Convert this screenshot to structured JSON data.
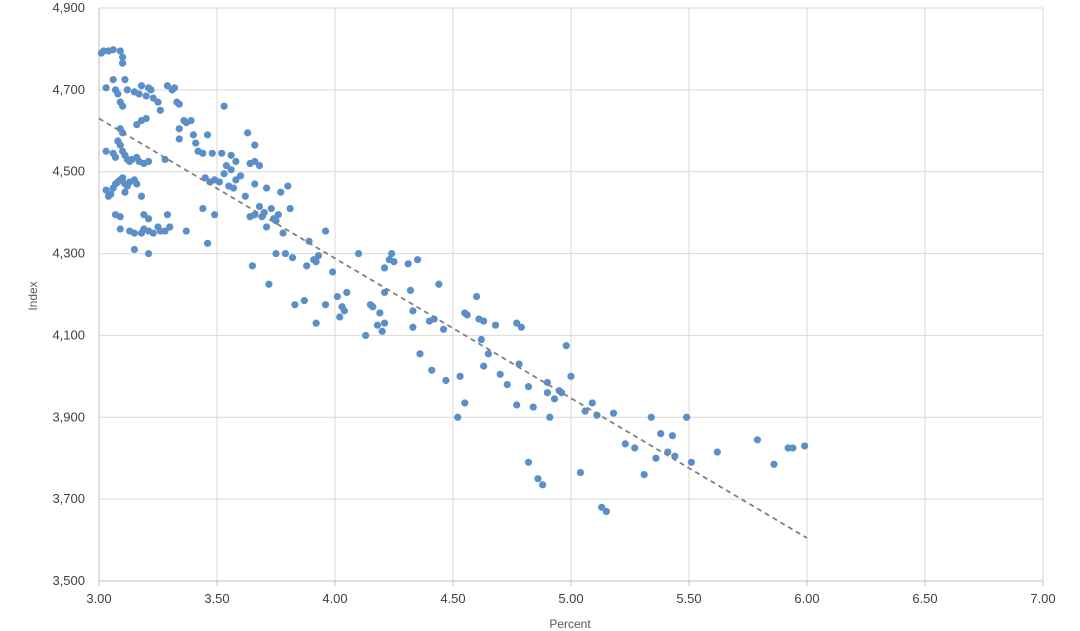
{
  "chart_data": {
    "type": "scatter",
    "xlabel": "Percent",
    "ylabel": "Index",
    "xlim": [
      3.0,
      7.0
    ],
    "ylim": [
      3500,
      4900
    ],
    "x_ticks": [
      "3.00",
      "3.50",
      "4.00",
      "4.50",
      "5.00",
      "5.50",
      "6.00",
      "6.50",
      "7.00"
    ],
    "y_ticks": [
      "3,500",
      "3,700",
      "3,900",
      "4,100",
      "4,300",
      "4,500",
      "4,700",
      "4,900"
    ],
    "grid": true,
    "legend": "none",
    "marker_color": "#5b8fc7",
    "trendline": {
      "style": "dashed linear",
      "color": "#808080",
      "x": [
        3.0,
        6.0
      ],
      "y": [
        4630,
        3605
      ]
    },
    "points": [
      [
        3.01,
        4790
      ],
      [
        3.02,
        4795
      ],
      [
        3.04,
        4795
      ],
      [
        3.06,
        4798
      ],
      [
        3.09,
        4795
      ],
      [
        3.1,
        4780
      ],
      [
        3.1,
        4765
      ],
      [
        3.03,
        4705
      ],
      [
        3.06,
        4725
      ],
      [
        3.07,
        4700
      ],
      [
        3.08,
        4690
      ],
      [
        3.09,
        4670
      ],
      [
        3.1,
        4660
      ],
      [
        3.11,
        4725
      ],
      [
        3.12,
        4700
      ],
      [
        3.15,
        4695
      ],
      [
        3.17,
        4690
      ],
      [
        3.18,
        4710
      ],
      [
        3.2,
        4685
      ],
      [
        3.21,
        4705
      ],
      [
        3.22,
        4700
      ],
      [
        3.23,
        4680
      ],
      [
        3.25,
        4670
      ],
      [
        3.26,
        4650
      ],
      [
        3.29,
        4710
      ],
      [
        3.31,
        4700
      ],
      [
        3.32,
        4705
      ],
      [
        3.33,
        4670
      ],
      [
        3.34,
        4665
      ],
      [
        3.16,
        4615
      ],
      [
        3.18,
        4625
      ],
      [
        3.2,
        4630
      ],
      [
        3.34,
        4605
      ],
      [
        3.36,
        4625
      ],
      [
        3.37,
        4620
      ],
      [
        3.39,
        4625
      ],
      [
        3.09,
        4605
      ],
      [
        3.1,
        4595
      ],
      [
        3.03,
        4550
      ],
      [
        3.06,
        4545
      ],
      [
        3.07,
        4535
      ],
      [
        3.08,
        4575
      ],
      [
        3.09,
        4565
      ],
      [
        3.1,
        4550
      ],
      [
        3.11,
        4540
      ],
      [
        3.12,
        4530
      ],
      [
        3.13,
        4525
      ],
      [
        3.14,
        4530
      ],
      [
        3.16,
        4535
      ],
      [
        3.17,
        4525
      ],
      [
        3.19,
        4520
      ],
      [
        3.21,
        4525
      ],
      [
        3.28,
        4530
      ],
      [
        3.34,
        4580
      ],
      [
        3.4,
        4590
      ],
      [
        3.41,
        4570
      ],
      [
        3.42,
        4550
      ],
      [
        3.44,
        4545
      ],
      [
        3.46,
        4590
      ],
      [
        3.03,
        4455
      ],
      [
        3.04,
        4440
      ],
      [
        3.05,
        4445
      ],
      [
        3.06,
        4460
      ],
      [
        3.07,
        4470
      ],
      [
        3.08,
        4475
      ],
      [
        3.09,
        4480
      ],
      [
        3.1,
        4485
      ],
      [
        3.11,
        4470
      ],
      [
        3.12,
        4465
      ],
      [
        3.13,
        4475
      ],
      [
        3.15,
        4480
      ],
      [
        3.16,
        4470
      ],
      [
        3.11,
        4450
      ],
      [
        3.18,
        4440
      ],
      [
        3.07,
        4395
      ],
      [
        3.09,
        4390
      ],
      [
        3.19,
        4395
      ],
      [
        3.21,
        4385
      ],
      [
        3.29,
        4395
      ],
      [
        3.09,
        4360
      ],
      [
        3.13,
        4355
      ],
      [
        3.15,
        4350
      ],
      [
        3.18,
        4350
      ],
      [
        3.19,
        4360
      ],
      [
        3.21,
        4355
      ],
      [
        3.23,
        4350
      ],
      [
        3.25,
        4365
      ],
      [
        3.26,
        4355
      ],
      [
        3.28,
        4355
      ],
      [
        3.3,
        4365
      ],
      [
        3.15,
        4310
      ],
      [
        3.21,
        4300
      ],
      [
        3.44,
        4410
      ],
      [
        3.46,
        4325
      ],
      [
        3.49,
        4395
      ],
      [
        3.37,
        4355
      ],
      [
        3.45,
        4485
      ],
      [
        3.47,
        4475
      ],
      [
        3.49,
        4480
      ],
      [
        3.51,
        4475
      ],
      [
        3.53,
        4495
      ],
      [
        3.54,
        4515
      ],
      [
        3.55,
        4465
      ],
      [
        3.56,
        4505
      ],
      [
        3.57,
        4460
      ],
      [
        3.58,
        4480
      ],
      [
        3.6,
        4490
      ],
      [
        3.52,
        4545
      ],
      [
        3.56,
        4540
      ],
      [
        3.58,
        4525
      ],
      [
        3.64,
        4520
      ],
      [
        3.66,
        4525
      ],
      [
        3.68,
        4515
      ],
      [
        3.63,
        4595
      ],
      [
        3.66,
        4565
      ],
      [
        3.53,
        4660
      ],
      [
        3.48,
        4545
      ],
      [
        3.62,
        4440
      ],
      [
        3.64,
        4390
      ],
      [
        3.66,
        4395
      ],
      [
        3.68,
        4415
      ],
      [
        3.69,
        4390
      ],
      [
        3.7,
        4400
      ],
      [
        3.71,
        4460
      ],
      [
        3.73,
        4410
      ],
      [
        3.74,
        4385
      ],
      [
        3.75,
        4380
      ],
      [
        3.76,
        4395
      ],
      [
        3.78,
        4350
      ],
      [
        3.8,
        4465
      ],
      [
        3.81,
        4410
      ],
      [
        3.77,
        4450
      ],
      [
        3.66,
        4470
      ],
      [
        3.71,
        4365
      ],
      [
        3.75,
        4300
      ],
      [
        3.79,
        4300
      ],
      [
        3.82,
        4290
      ],
      [
        3.65,
        4270
      ],
      [
        3.72,
        4225
      ],
      [
        3.83,
        4175
      ],
      [
        3.87,
        4185
      ],
      [
        3.88,
        4270
      ],
      [
        3.89,
        4330
      ],
      [
        3.91,
        4285
      ],
      [
        3.92,
        4280
      ],
      [
        3.93,
        4295
      ],
      [
        3.96,
        4355
      ],
      [
        3.96,
        4175
      ],
      [
        3.92,
        4130
      ],
      [
        3.99,
        4255
      ],
      [
        4.01,
        4195
      ],
      [
        4.03,
        4170
      ],
      [
        4.04,
        4160
      ],
      [
        4.05,
        4205
      ],
      [
        4.02,
        4145
      ],
      [
        4.1,
        4300
      ],
      [
        4.13,
        4100
      ],
      [
        4.15,
        4175
      ],
      [
        4.16,
        4170
      ],
      [
        4.18,
        4125
      ],
      [
        4.19,
        4155
      ],
      [
        4.2,
        4110
      ],
      [
        4.21,
        4130
      ],
      [
        4.21,
        4265
      ],
      [
        4.23,
        4285
      ],
      [
        4.24,
        4300
      ],
      [
        4.25,
        4280
      ],
      [
        4.21,
        4205
      ],
      [
        4.31,
        4275
      ],
      [
        4.35,
        4285
      ],
      [
        4.32,
        4210
      ],
      [
        4.33,
        4160
      ],
      [
        4.33,
        4120
      ],
      [
        4.36,
        4055
      ],
      [
        4.4,
        4135
      ],
      [
        4.42,
        4140
      ],
      [
        4.44,
        4225
      ],
      [
        4.46,
        4115
      ],
      [
        4.41,
        4015
      ],
      [
        4.47,
        3990
      ],
      [
        4.52,
        3900
      ],
      [
        4.53,
        4000
      ],
      [
        4.55,
        4155
      ],
      [
        4.56,
        4150
      ],
      [
        4.6,
        4195
      ],
      [
        4.61,
        4140
      ],
      [
        4.63,
        4135
      ],
      [
        4.62,
        4090
      ],
      [
        4.65,
        4055
      ],
      [
        4.63,
        4025
      ],
      [
        4.68,
        4125
      ],
      [
        4.55,
        3935
      ],
      [
        4.7,
        4005
      ],
      [
        4.73,
        3980
      ],
      [
        4.77,
        4130
      ],
      [
        4.79,
        4120
      ],
      [
        4.78,
        4030
      ],
      [
        4.77,
        3930
      ],
      [
        4.82,
        3975
      ],
      [
        4.82,
        3790
      ],
      [
        4.84,
        3925
      ],
      [
        4.86,
        3750
      ],
      [
        4.88,
        3735
      ],
      [
        4.9,
        3985
      ],
      [
        4.9,
        3960
      ],
      [
        4.91,
        3900
      ],
      [
        4.93,
        3945
      ],
      [
        4.95,
        3965
      ],
      [
        4.96,
        3960
      ],
      [
        4.98,
        4075
      ],
      [
        5.0,
        4000
      ],
      [
        5.04,
        3765
      ],
      [
        5.06,
        3915
      ],
      [
        5.09,
        3935
      ],
      [
        5.11,
        3905
      ],
      [
        5.13,
        3680
      ],
      [
        5.15,
        3670
      ],
      [
        5.18,
        3910
      ],
      [
        5.23,
        3835
      ],
      [
        5.27,
        3825
      ],
      [
        5.31,
        3760
      ],
      [
        5.34,
        3900
      ],
      [
        5.36,
        3800
      ],
      [
        5.38,
        3860
      ],
      [
        5.41,
        3815
      ],
      [
        5.43,
        3855
      ],
      [
        5.44,
        3805
      ],
      [
        5.49,
        3900
      ],
      [
        5.51,
        3790
      ],
      [
        5.62,
        3815
      ],
      [
        5.79,
        3845
      ],
      [
        5.86,
        3785
      ],
      [
        5.92,
        3825
      ],
      [
        5.94,
        3825
      ],
      [
        5.99,
        3830
      ]
    ]
  }
}
